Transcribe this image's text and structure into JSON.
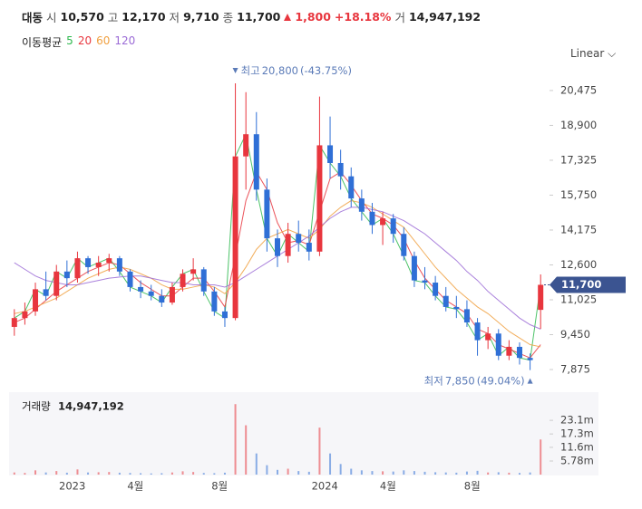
{
  "header": {
    "name": "대동",
    "open_label": "시",
    "open": "10,570",
    "high_label": "고",
    "high": "12,170",
    "low_label": "저",
    "low": "9,710",
    "close_label": "종",
    "close": "11,700",
    "change": "1,800",
    "change_pct": "+18.18%",
    "volume_label": "거",
    "volume": "14,947,192"
  },
  "scale_selector": "Linear",
  "chart_data": {
    "type": "candlestick",
    "categories": [
      null,
      null,
      null,
      null,
      null,
      null,
      "2023",
      null,
      null,
      null,
      null,
      null,
      "4월",
      null,
      null,
      null,
      null,
      null,
      null,
      null,
      "8월",
      null,
      null,
      null,
      null,
      null,
      null,
      null,
      null,
      null,
      "2024",
      null,
      null,
      null,
      null,
      null,
      "4월",
      null,
      null,
      null,
      null,
      null,
      null,
      null,
      "8월",
      null,
      null,
      null,
      null,
      null,
      null
    ],
    "open": [
      9800,
      10200,
      10500,
      11500,
      11200,
      12300,
      12000,
      12900,
      12500,
      12700,
      12900,
      12300,
      11600,
      11400,
      11200,
      10900,
      11600,
      12200,
      12400,
      11400,
      10500,
      10200,
      17500,
      18500,
      16000,
      13800,
      13000,
      14000,
      13600,
      13200,
      18000,
      17200,
      16600,
      15600,
      15000,
      14400,
      14700,
      14000,
      13000,
      11900,
      11800,
      11200,
      10700,
      10600,
      10000,
      9200,
      9500,
      8500,
      8900,
      8400,
      10570
    ],
    "high": [
      10600,
      10900,
      11800,
      12300,
      12600,
      12800,
      13200,
      13000,
      13000,
      13100,
      13000,
      12400,
      11900,
      11700,
      11500,
      11800,
      12400,
      12900,
      12500,
      11600,
      10700,
      20800,
      20400,
      19500,
      16500,
      14200,
      14500,
      14600,
      14200,
      20200,
      19300,
      17800,
      17000,
      16000,
      15400,
      15000,
      14900,
      14300,
      13200,
      12500,
      12100,
      11600,
      11200,
      11000,
      10200,
      9800,
      9700,
      9200,
      9100,
      8600,
      12170
    ],
    "low": [
      9400,
      9900,
      10300,
      11000,
      11000,
      11600,
      11800,
      12200,
      12100,
      12300,
      12100,
      11400,
      11100,
      11000,
      10700,
      10800,
      11400,
      11900,
      11200,
      10300,
      9800,
      10100,
      16000,
      15500,
      13200,
      12500,
      12700,
      13200,
      12800,
      13000,
      16500,
      16000,
      15200,
      14600,
      14000,
      13500,
      13600,
      12800,
      11600,
      11500,
      11000,
      10500,
      10200,
      9800,
      8500,
      8800,
      8300,
      8300,
      8100,
      7850,
      9710
    ],
    "close": [
      10200,
      10500,
      11500,
      11200,
      12300,
      12000,
      12900,
      12500,
      12700,
      12900,
      12300,
      11600,
      11400,
      11200,
      10900,
      11600,
      12200,
      12400,
      11400,
      10500,
      10200,
      17500,
      18500,
      16000,
      13800,
      13000,
      14000,
      13600,
      13200,
      18000,
      17200,
      16600,
      15600,
      15000,
      14400,
      14700,
      14000,
      13000,
      11900,
      11800,
      11200,
      10700,
      10600,
      10000,
      9200,
      9500,
      8500,
      8900,
      8400,
      8300,
      11700
    ],
    "up_color": "#e8363e",
    "down_color": "#2f6fd6",
    "ylim": [
      7180,
      21290
    ],
    "yticks": [
      {
        "value": 7875,
        "label": "7,875"
      },
      {
        "value": 9450,
        "label": "9,450"
      },
      {
        "value": 11025,
        "label": "11,025"
      },
      {
        "value": 12600,
        "label": "12,600"
      },
      {
        "value": 14175,
        "label": "14,175"
      },
      {
        "value": 15750,
        "label": "15,750"
      },
      {
        "value": 17325,
        "label": "17,325"
      },
      {
        "value": 18900,
        "label": "18,900"
      },
      {
        "value": 20475,
        "label": "20,475"
      }
    ],
    "grid": false,
    "last_price": {
      "value": 11700,
      "label": "11,700",
      "color": "#3b5491"
    },
    "high_annotation": {
      "label": "최고",
      "value": 20800,
      "value_label": "20,800",
      "note": "(-43.75%)",
      "color": "#5b7bb8"
    },
    "low_annotation": {
      "label": "최저",
      "value": 7850,
      "value_label": "7,850",
      "note": "(49.04%)",
      "color": "#5b7bb8"
    },
    "ma": {
      "label": "이동평균",
      "series": [
        {
          "name": "5",
          "color": "#2db84d",
          "values": [
            10200,
            10500,
            11500,
            11200,
            12300,
            12000,
            12900,
            12500,
            12700,
            12900,
            12300,
            11600,
            11400,
            11200,
            10900,
            11600,
            12200,
            12400,
            11400,
            10500,
            10200,
            17500,
            18500,
            16000,
            13800,
            13000,
            14000,
            13600,
            13200,
            18000,
            17200,
            16600,
            15600,
            15000,
            14400,
            14700,
            14000,
            13000,
            11900,
            11800,
            11200,
            10700,
            10600,
            10000,
            9200,
            9500,
            8500,
            8900,
            8400,
            8300,
            11700
          ]
        },
        {
          "name": "20",
          "color": "#e8363e",
          "values": [
            10000,
            10200,
            10600,
            11000,
            11400,
            11700,
            12000,
            12300,
            12500,
            12700,
            12600,
            12200,
            11800,
            11500,
            11200,
            11200,
            11600,
            12000,
            12000,
            11400,
            10700,
            13000,
            15500,
            16800,
            16000,
            14500,
            13600,
            13700,
            13500,
            15000,
            16500,
            16800,
            16200,
            15500,
            14900,
            14700,
            14400,
            13800,
            12800,
            12000,
            11500,
            11000,
            10700,
            10400,
            9700,
            9500,
            9000,
            8800,
            8600,
            8400,
            9000
          ]
        },
        {
          "name": "60",
          "color": "#f0a040",
          "values": [
            10400,
            10500,
            10700,
            10900,
            11100,
            11400,
            11700,
            12000,
            12200,
            12400,
            12500,
            12400,
            12200,
            12000,
            11700,
            11500,
            11500,
            11600,
            11700,
            11600,
            11300,
            11800,
            12500,
            13300,
            13800,
            14000,
            14200,
            14000,
            13800,
            14200,
            14800,
            15200,
            15500,
            15400,
            15200,
            14900,
            14600,
            14300,
            13700,
            13100,
            12500,
            12000,
            11500,
            11100,
            10700,
            10400,
            10000,
            9600,
            9300,
            9000,
            8900
          ]
        },
        {
          "name": "120",
          "color": "#9b6bd6",
          "values": [
            12700,
            12400,
            12100,
            11900,
            11800,
            11700,
            11700,
            11800,
            11900,
            12000,
            12050,
            12100,
            12100,
            12000,
            11900,
            11800,
            11800,
            11700,
            11700,
            11700,
            11600,
            11800,
            12100,
            12400,
            12700,
            13000,
            13300,
            13600,
            13900,
            14300,
            14700,
            15000,
            15200,
            15200,
            15100,
            15000,
            14800,
            14600,
            14300,
            14000,
            13600,
            13200,
            12800,
            12300,
            11900,
            11400,
            11000,
            10600,
            10200,
            9900,
            9700
          ]
        }
      ]
    },
    "volume": {
      "label": "거래량",
      "total": "14,947,192",
      "values": [
        900000,
        700000,
        1800000,
        900000,
        1500000,
        800000,
        2200000,
        900000,
        1000000,
        1100000,
        800000,
        700000,
        600000,
        500000,
        600000,
        900000,
        1400000,
        1100000,
        700000,
        600000,
        800000,
        30000000,
        21000000,
        9000000,
        4000000,
        2000000,
        2500000,
        1500000,
        1200000,
        20000000,
        9000000,
        4500000,
        2500000,
        1800000,
        1500000,
        1400000,
        1300000,
        1800000,
        1500000,
        1200000,
        1000000,
        900000,
        800000,
        1300000,
        1600000,
        900000,
        1000000,
        800000,
        700000,
        900000,
        14947192
      ],
      "ylim": [
        0,
        32400000
      ],
      "yticks": [
        {
          "value": 5780000,
          "label": "5.78m"
        },
        {
          "value": 11600000,
          "label": "11.6m"
        },
        {
          "value": 17300000,
          "label": "17.3m"
        },
        {
          "value": 23100000,
          "label": "23.1m"
        }
      ]
    }
  }
}
